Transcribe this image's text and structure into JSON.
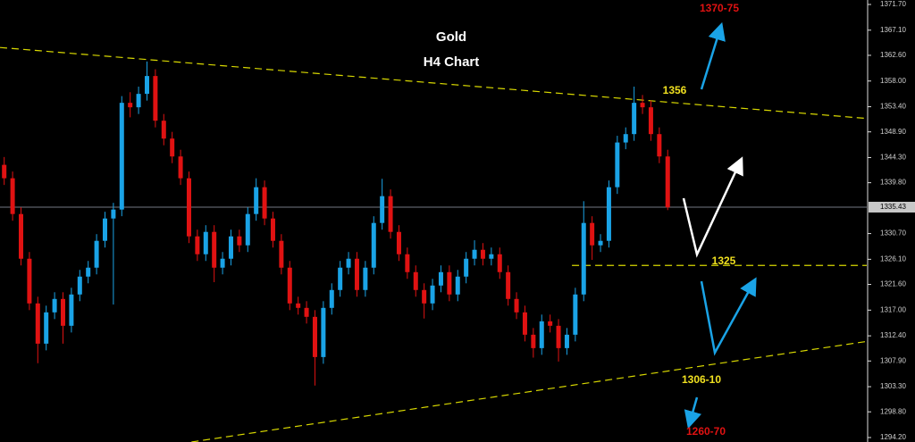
{
  "chart_data": {
    "type": "candlestick",
    "title": "Gold",
    "subtitle": "H4 Chart",
    "up_color": "#1aa3e6",
    "down_color": "#e01212",
    "xlim": [
      -0.5,
      102.7
    ],
    "ylim": [
      1293.4,
      1372.5
    ],
    "yticks": [
      {
        "value": 1371.7,
        "label": "1371.70"
      },
      {
        "value": 1367.1,
        "label": "1367.10"
      },
      {
        "value": 1362.6,
        "label": "1362.60"
      },
      {
        "value": 1358.0,
        "label": "1358.00"
      },
      {
        "value": 1353.4,
        "label": "1353.40"
      },
      {
        "value": 1348.9,
        "label": "1348.90"
      },
      {
        "value": 1344.3,
        "label": "1344.30"
      },
      {
        "value": 1339.8,
        "label": "1339.80"
      },
      {
        "value": 1330.7,
        "label": "1330.70"
      },
      {
        "value": 1326.1,
        "label": "1326.10"
      },
      {
        "value": 1321.6,
        "label": "1321.60"
      },
      {
        "value": 1317.0,
        "label": "1317.00"
      },
      {
        "value": 1312.4,
        "label": "1312.40"
      },
      {
        "value": 1307.9,
        "label": "1307.90"
      },
      {
        "value": 1303.3,
        "label": "1303.30"
      },
      {
        "value": 1298.8,
        "label": "1298.80"
      },
      {
        "value": 1294.2,
        "label": "1294.20"
      }
    ],
    "last_price": 1335.43,
    "open": [
      1343.0,
      1340.6,
      1334.2,
      1326.2,
      1318.2,
      1311.0,
      1316.6,
      1319.0,
      1314.2,
      1319.8,
      1323.0,
      1324.6,
      1329.4,
      1333.4,
      1335.0,
      1354.1,
      1353.3,
      1355.7,
      1358.9,
      1350.9,
      1347.7,
      1344.5,
      1340.6,
      1330.2,
      1327.0,
      1331.0,
      1324.6,
      1326.2,
      1330.2,
      1328.6,
      1334.2,
      1339.0,
      1333.4,
      1329.4,
      1324.6,
      1318.2,
      1317.4,
      1315.8,
      1308.6,
      1317.4,
      1320.6,
      1324.6,
      1326.2,
      1320.6,
      1324.6,
      1332.6,
      1337.4,
      1331.0,
      1327.0,
      1323.8,
      1320.6,
      1318.2,
      1321.4,
      1323.8,
      1319.8,
      1323.0,
      1326.2,
      1327.8,
      1326.2,
      1327.0,
      1323.8,
      1319.0,
      1316.6,
      1312.6,
      1310.2,
      1315.0,
      1314.2,
      1310.2,
      1312.6,
      1319.8,
      1332.6,
      1328.6,
      1329.4,
      1339.0,
      1347.0,
      1348.5,
      1354.1,
      1353.3,
      1348.5,
      1344.5
    ],
    "high": [
      1344.4,
      1341.8,
      1335.4,
      1327.4,
      1319.4,
      1317.8,
      1320.2,
      1320.2,
      1321.0,
      1324.2,
      1325.8,
      1330.6,
      1334.6,
      1336.2,
      1355.3,
      1356.0,
      1357.0,
      1361.5,
      1360.1,
      1352.1,
      1348.9,
      1345.7,
      1341.8,
      1331.4,
      1332.2,
      1332.2,
      1327.4,
      1331.4,
      1331.4,
      1335.4,
      1340.6,
      1340.2,
      1334.6,
      1330.6,
      1325.8,
      1319.4,
      1318.6,
      1317.0,
      1318.6,
      1321.8,
      1325.8,
      1327.4,
      1327.4,
      1325.8,
      1333.8,
      1340.5,
      1338.6,
      1332.2,
      1328.2,
      1325.0,
      1321.8,
      1322.6,
      1325.0,
      1325.0,
      1324.2,
      1327.4,
      1329.5,
      1329.0,
      1328.2,
      1328.2,
      1325.0,
      1320.2,
      1317.8,
      1313.8,
      1316.2,
      1316.2,
      1315.4,
      1313.8,
      1321.0,
      1336.5,
      1333.8,
      1330.6,
      1340.2,
      1348.2,
      1349.7,
      1357.0,
      1355.5,
      1354.5,
      1349.7,
      1345.7
    ],
    "low": [
      1339.4,
      1333.0,
      1325.0,
      1317.0,
      1307.5,
      1309.8,
      1315.4,
      1311.0,
      1313.0,
      1318.6,
      1321.8,
      1323.4,
      1328.2,
      1318.0,
      1333.8,
      1351.5,
      1352.1,
      1354.5,
      1349.7,
      1346.5,
      1343.3,
      1339.4,
      1329.0,
      1325.8,
      1325.8,
      1322.0,
      1323.4,
      1325.0,
      1327.4,
      1327.4,
      1333.0,
      1332.2,
      1328.2,
      1323.4,
      1317.0,
      1316.2,
      1314.6,
      1303.5,
      1307.4,
      1316.2,
      1319.4,
      1323.4,
      1319.4,
      1319.4,
      1323.4,
      1331.4,
      1329.8,
      1325.8,
      1322.6,
      1319.4,
      1315.5,
      1317.0,
      1320.2,
      1318.6,
      1318.6,
      1321.8,
      1325.0,
      1325.0,
      1325.0,
      1322.6,
      1317.8,
      1315.4,
      1311.4,
      1308.5,
      1309.0,
      1313.0,
      1307.8,
      1309.0,
      1311.4,
      1318.6,
      1326.0,
      1327.4,
      1328.2,
      1337.8,
      1345.8,
      1347.3,
      1352.1,
      1347.3,
      1343.3,
      1334.9
    ],
    "close": [
      1340.6,
      1334.2,
      1326.2,
      1318.2,
      1311.0,
      1316.6,
      1319.0,
      1314.2,
      1319.8,
      1323.0,
      1324.6,
      1329.4,
      1333.4,
      1335.0,
      1354.1,
      1353.3,
      1355.7,
      1358.9,
      1350.9,
      1347.7,
      1344.5,
      1340.6,
      1330.2,
      1327.0,
      1331.0,
      1324.6,
      1326.2,
      1330.2,
      1328.6,
      1334.2,
      1339.0,
      1333.4,
      1329.4,
      1324.6,
      1318.2,
      1317.4,
      1315.8,
      1308.6,
      1317.4,
      1320.6,
      1324.6,
      1326.2,
      1320.6,
      1324.6,
      1332.6,
      1337.4,
      1331.0,
      1327.0,
      1323.8,
      1320.6,
      1318.2,
      1321.4,
      1323.8,
      1319.8,
      1323.0,
      1326.2,
      1327.8,
      1326.2,
      1327.0,
      1323.8,
      1319.0,
      1316.6,
      1312.6,
      1310.2,
      1315.0,
      1314.2,
      1310.2,
      1312.6,
      1319.8,
      1332.6,
      1328.6,
      1329.4,
      1339.0,
      1347.0,
      1348.5,
      1354.1,
      1353.3,
      1348.5,
      1344.5,
      1335.4
    ],
    "trendlines": [
      {
        "x": [
          -0.5,
          102.7
        ],
        "y": [
          1364.0,
          1351.3
        ]
      },
      {
        "x": [
          22.3,
          102.7
        ],
        "y": [
          1293.4,
          1311.4
        ]
      },
      {
        "x": [
          67.6,
          102.7
        ],
        "y": [
          1325,
          1325
        ]
      }
    ],
    "annotations": [
      "1370-75",
      "1356",
      "1325",
      "1306-10",
      "1260-70"
    ]
  }
}
